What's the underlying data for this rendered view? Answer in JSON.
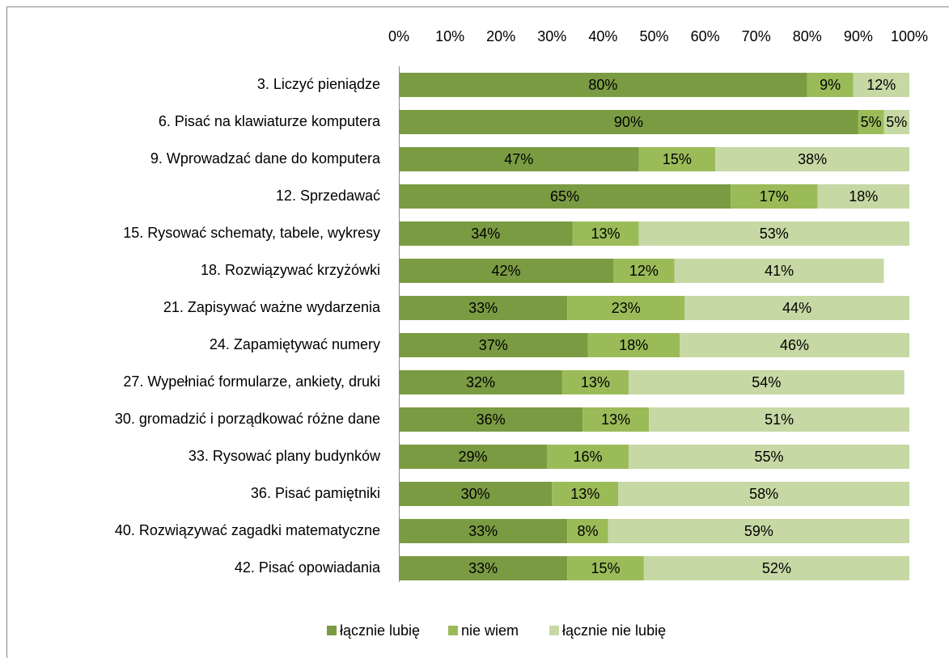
{
  "chart_data": {
    "type": "stacked_bar_horizontal",
    "categories": [
      "3. Liczyć pieniądze",
      "6. Pisać na klawiaturze komputera",
      "9. Wprowadzać dane do komputera",
      "12. Sprzedawać",
      "15. Rysować schematy, tabele, wykresy",
      "18. Rozwiązywać krzyżówki",
      "21. Zapisywać ważne wydarzenia",
      "24. Zapamiętywać numery",
      "27. Wypełniać formularze, ankiety, druki",
      "30. gromadzić i porządkować różne dane",
      "33. Rysować plany budynków",
      "36. Pisać pamiętniki",
      "40. Rozwiązywać zagadki matematyczne",
      "42. Pisać opowiadania"
    ],
    "series": [
      {
        "name": "łącznie lubię",
        "color": "#7b9b43",
        "values": [
          80,
          90,
          47,
          65,
          34,
          42,
          33,
          37,
          32,
          36,
          29,
          30,
          33,
          33
        ],
        "value_labels": [
          "80%",
          "90%",
          "47%",
          "65%",
          "34%",
          "42%",
          "33%",
          "37%",
          "32%",
          "36%",
          "29%",
          "30%",
          "33%",
          "33%"
        ]
      },
      {
        "name": "nie wiem",
        "color": "#9bbb59",
        "values": [
          9,
          5,
          15,
          17,
          13,
          12,
          23,
          18,
          13,
          13,
          16,
          13,
          8,
          15
        ],
        "value_labels": [
          "9%",
          "5%",
          "15%",
          "17%",
          "13%",
          "12%",
          "23%",
          "18%",
          "13%",
          "13%",
          "16%",
          "13%",
          "8%",
          "15%"
        ]
      },
      {
        "name": "łącznie nie lubię",
        "color": "#c6d8a4",
        "values": [
          12,
          5,
          38,
          18,
          53,
          41,
          44,
          46,
          54,
          51,
          55,
          58,
          59,
          52
        ],
        "value_labels": [
          "12%",
          "5%",
          "38%",
          "18%",
          "53%",
          "41%",
          "44%",
          "46%",
          "54%",
          "51%",
          "55%",
          "58%",
          "59%",
          "52%"
        ]
      }
    ],
    "xlim": [
      0,
      100
    ],
    "xticks": [
      {
        "value": 0,
        "label": "0%"
      },
      {
        "value": 10,
        "label": "10%"
      },
      {
        "value": 20,
        "label": "20%"
      },
      {
        "value": 30,
        "label": "30%"
      },
      {
        "value": 40,
        "label": "40%"
      },
      {
        "value": 50,
        "label": "50%"
      },
      {
        "value": 60,
        "label": "60%"
      },
      {
        "value": 70,
        "label": "70%"
      },
      {
        "value": 80,
        "label": "80%"
      },
      {
        "value": 90,
        "label": "90%"
      },
      {
        "value": 100,
        "label": "100%"
      }
    ],
    "legend": "bottom"
  }
}
